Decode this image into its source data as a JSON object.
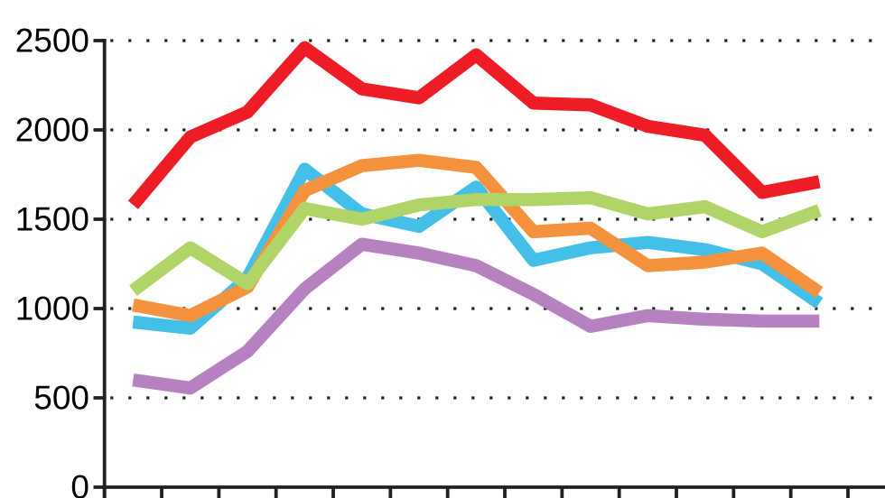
{
  "chart_data": {
    "type": "line",
    "title": "",
    "xlabel": "",
    "ylabel": "",
    "ylim": [
      0,
      2500
    ],
    "grid": "dotted horizontal gridlines at each y tick",
    "legend_position": "none",
    "y_ticks": [
      0,
      500,
      1000,
      1500,
      2000,
      2500
    ],
    "y_tick_labels": [
      "0",
      "500",
      "1000",
      "1500",
      "2000",
      "2500"
    ],
    "x_tick_count": 14,
    "x_tick_labels_visible": false,
    "x": [
      1,
      2,
      3,
      4,
      5,
      6,
      7,
      8,
      9,
      10,
      11,
      12,
      13
    ],
    "series": [
      {
        "name": "purple",
        "color": "#b780c1",
        "values": [
          600,
          555,
          760,
          1110,
          1360,
          1310,
          1240,
          1080,
          900,
          960,
          940,
          930,
          930
        ]
      },
      {
        "name": "blue",
        "color": "#44c0e8",
        "values": [
          925,
          890,
          1170,
          1780,
          1530,
          1460,
          1680,
          1270,
          1340,
          1370,
          1330,
          1250,
          1030
        ]
      },
      {
        "name": "orange",
        "color": "#f5923e",
        "values": [
          1020,
          960,
          1120,
          1660,
          1800,
          1830,
          1790,
          1430,
          1450,
          1240,
          1260,
          1310,
          1090
        ]
      },
      {
        "name": "green",
        "color": "#b1d469",
        "values": [
          1100,
          1340,
          1140,
          1560,
          1500,
          1580,
          1610,
          1610,
          1620,
          1530,
          1570,
          1430,
          1550
        ]
      },
      {
        "name": "red",
        "color": "#ed1c25",
        "values": [
          1580,
          1960,
          2100,
          2460,
          2230,
          2180,
          2420,
          2150,
          2140,
          2020,
          1970,
          1650,
          1710
        ]
      }
    ]
  },
  "axes_style": {
    "axis_color": "#231f20",
    "grid_dot_color": "#231f20",
    "label_color": "#000000"
  }
}
